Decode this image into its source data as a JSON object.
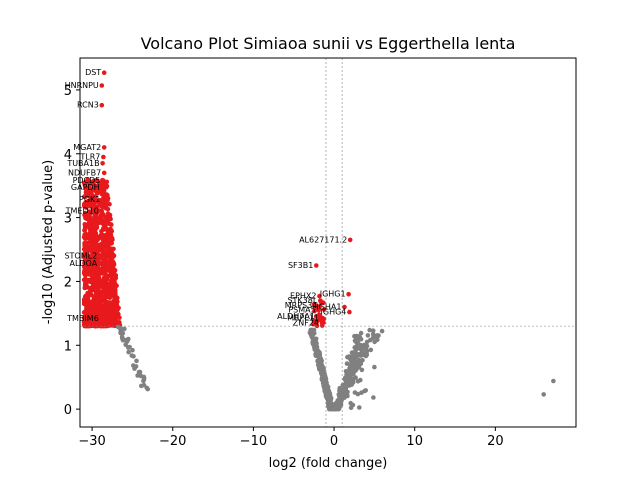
{
  "chart_data": {
    "type": "scatter",
    "title": "Volcano Plot Simiaoa sunii vs Eggerthella lenta",
    "xlabel": "log2 (fold change)",
    "ylabel": "-log10 (Adjusted p-value)",
    "xlim": [
      -31.5,
      30
    ],
    "ylim": [
      -0.28,
      5.5
    ],
    "xticks": [
      -30,
      -20,
      -10,
      0,
      10,
      20
    ],
    "yticks": [
      0,
      1,
      2,
      3,
      4,
      5
    ],
    "thresholds": {
      "fold_change_lines": [
        -1,
        1
      ],
      "pvalue_line": 1.3
    },
    "grid": false,
    "legend": "none",
    "colors": {
      "significant": "#e8191c",
      "non_significant": "#808080"
    },
    "labeled_points": [
      {
        "label": "DST",
        "x": -28.5,
        "y": 5.27
      },
      {
        "label": "HNRNPU",
        "x": -28.8,
        "y": 5.07
      },
      {
        "label": "RCN3",
        "x": -28.8,
        "y": 4.76
      },
      {
        "label": "MGAT2",
        "x": -28.5,
        "y": 4.1
      },
      {
        "label": "TLR7",
        "x": -28.6,
        "y": 3.95
      },
      {
        "label": "TUBA1B",
        "x": -28.7,
        "y": 3.85
      },
      {
        "label": "NDUFB7",
        "x": -28.5,
        "y": 3.7
      },
      {
        "label": "PDCD5",
        "x": -28.6,
        "y": 3.58
      },
      {
        "label": "GAPDH",
        "x": -28.7,
        "y": 3.47
      },
      {
        "label": "PGK1",
        "x": -28.6,
        "y": 3.28
      },
      {
        "label": "TMED10",
        "x": -28.8,
        "y": 3.1
      },
      {
        "label": "STOML2",
        "x": -29.0,
        "y": 2.4
      },
      {
        "label": "ALDOA",
        "x": -29.0,
        "y": 2.28
      },
      {
        "label": "TMBIM6",
        "x": -28.8,
        "y": 1.42
      },
      {
        "label": "AL627171.2",
        "x": 2.0,
        "y": 2.65
      },
      {
        "label": "SF3B1",
        "x": -2.2,
        "y": 2.25
      },
      {
        "label": "EPHX2",
        "x": -1.8,
        "y": 1.77
      },
      {
        "label": "STK38L",
        "x": -1.7,
        "y": 1.7
      },
      {
        "label": "MRPS34",
        "x": -1.7,
        "y": 1.62
      },
      {
        "label": "PSMA5",
        "x": -1.9,
        "y": 1.55
      },
      {
        "label": "ALDH7A1",
        "x": -2.0,
        "y": 1.45
      },
      {
        "label": "MRPL11",
        "x": -1.5,
        "y": 1.43
      },
      {
        "label": "ZNF24",
        "x": -1.5,
        "y": 1.35
      },
      {
        "label": "IGHG1",
        "x": 1.8,
        "y": 1.8
      },
      {
        "label": "IGHA1",
        "x": 1.3,
        "y": 1.6
      },
      {
        "label": "IGHG4",
        "x": 1.9,
        "y": 1.52
      }
    ],
    "extra_points": [
      {
        "x": 26.0,
        "y": 0.23
      },
      {
        "x": 27.2,
        "y": 0.44
      }
    ]
  }
}
